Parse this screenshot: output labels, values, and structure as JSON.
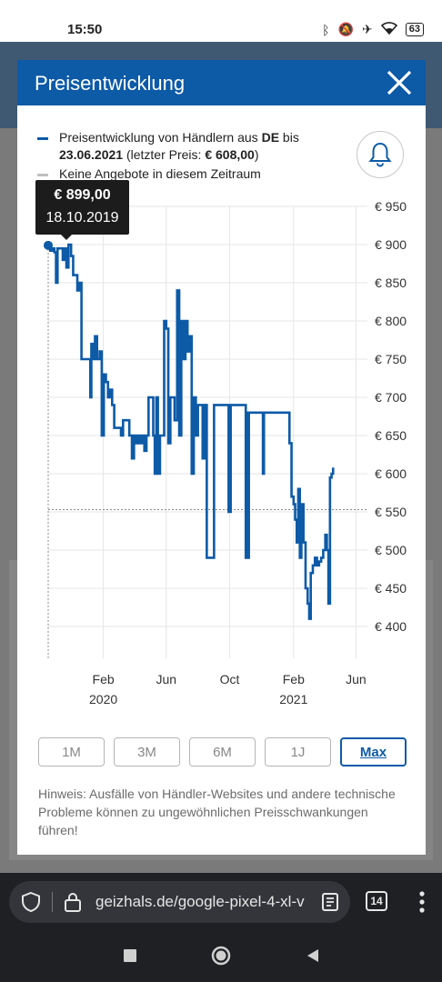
{
  "statusbar": {
    "time": "15:50",
    "battery": "63"
  },
  "modal": {
    "title": "Preisentwicklung"
  },
  "legend": {
    "line1_pre": "Preisentwicklung von Händlern aus ",
    "line1_country": "DE",
    "line1_post": " bis",
    "line2_date": "23.06.2021",
    "line2_mid": " (letzter Preis: ",
    "line2_price": "€ 608,00",
    "line2_end": ")",
    "gray_label": "Keine Angebote in diesem Zeitraum",
    "line_color": "#0d5aa7",
    "gray_color": "#c0c0c0"
  },
  "tooltip": {
    "price": "€ 899,00",
    "date": "18.10.2019"
  },
  "ranges": [
    {
      "label": "1M",
      "active": false
    },
    {
      "label": "3M",
      "active": false
    },
    {
      "label": "6M",
      "active": false
    },
    {
      "label": "1J",
      "active": false
    },
    {
      "label": "Max",
      "active": true
    }
  ],
  "hint": "Hinweis: Ausfälle von Händler-Websites und andere technische Probleme können zu ungewöhnlichen Preisschwankungen führen!",
  "browser": {
    "url": "geizhals.de/google-pixel-4-xl-v",
    "tab_count": "14"
  },
  "chart_data": {
    "type": "line",
    "accent_color": "#0d5aa7",
    "ylim": [
      400,
      950
    ],
    "yticks": [
      {
        "value": 950,
        "label": "€ 950"
      },
      {
        "value": 900,
        "label": "€ 900"
      },
      {
        "value": 850,
        "label": "€ 850"
      },
      {
        "value": 800,
        "label": "€ 800"
      },
      {
        "value": 750,
        "label": "€ 750"
      },
      {
        "value": 700,
        "label": "€ 700"
      },
      {
        "value": 650,
        "label": "€ 650"
      },
      {
        "value": 600,
        "label": "€ 600"
      },
      {
        "value": 550,
        "label": "€ 550"
      },
      {
        "value": 500,
        "label": "€ 500"
      },
      {
        "value": 450,
        "label": "€ 450"
      },
      {
        "value": 400,
        "label": "€ 400"
      }
    ],
    "xlim": [
      "2019-10-18",
      "2021-06-23"
    ],
    "xticks": [
      {
        "date": "2020-02-01",
        "label": "Feb",
        "year": "2020"
      },
      {
        "date": "2020-06-01",
        "label": "Jun",
        "year": ""
      },
      {
        "date": "2020-10-01",
        "label": "Oct",
        "year": ""
      },
      {
        "date": "2021-02-01",
        "label": "Feb",
        "year": "2021"
      },
      {
        "date": "2021-06-01",
        "label": "Jun",
        "year": ""
      }
    ],
    "reference_line": {
      "value": 553,
      "style": "dashed"
    },
    "series": [
      {
        "points": [
          [
            "2019-10-18",
            899
          ],
          [
            "2019-10-22",
            892
          ],
          [
            "2019-10-26",
            895
          ],
          [
            "2019-10-30",
            890
          ],
          [
            "2019-11-02",
            850
          ],
          [
            "2019-11-05",
            895
          ],
          [
            "2019-11-12",
            895
          ],
          [
            "2019-11-15",
            880
          ],
          [
            "2019-11-19",
            895
          ],
          [
            "2019-11-22",
            870
          ],
          [
            "2019-11-26",
            900
          ],
          [
            "2019-12-01",
            885
          ],
          [
            "2019-12-05",
            860
          ],
          [
            "2019-12-10",
            860
          ],
          [
            "2019-12-13",
            840
          ],
          [
            "2019-12-17",
            850
          ],
          [
            "2019-12-21",
            750
          ],
          [
            "2020-01-05",
            750
          ],
          [
            "2020-01-07",
            700
          ],
          [
            "2020-01-09",
            770
          ],
          [
            "2020-01-12",
            750
          ],
          [
            "2020-01-16",
            780
          ],
          [
            "2020-01-20",
            750
          ],
          [
            "2020-01-25",
            760
          ],
          [
            "2020-01-29",
            650
          ],
          [
            "2020-02-02",
            730
          ],
          [
            "2020-02-06",
            720
          ],
          [
            "2020-02-10",
            700
          ],
          [
            "2020-02-14",
            710
          ],
          [
            "2020-02-18",
            690
          ],
          [
            "2020-02-22",
            660
          ],
          [
            "2020-02-27",
            660
          ],
          [
            "2020-03-02",
            660
          ],
          [
            "2020-03-06",
            650
          ],
          [
            "2020-03-10",
            670
          ],
          [
            "2020-03-18",
            670
          ],
          [
            "2020-03-22",
            650
          ],
          [
            "2020-03-27",
            620
          ],
          [
            "2020-03-31",
            650
          ],
          [
            "2020-04-04",
            640
          ],
          [
            "2020-04-08",
            650
          ],
          [
            "2020-04-12",
            640
          ],
          [
            "2020-04-16",
            650
          ],
          [
            "2020-04-20",
            630
          ],
          [
            "2020-04-24",
            650
          ],
          [
            "2020-04-28",
            700
          ],
          [
            "2020-05-03",
            700
          ],
          [
            "2020-05-07",
            650
          ],
          [
            "2020-05-10",
            600
          ],
          [
            "2020-05-13",
            700
          ],
          [
            "2020-05-16",
            600
          ],
          [
            "2020-05-20",
            650
          ],
          [
            "2020-05-24",
            650
          ],
          [
            "2020-05-28",
            800
          ],
          [
            "2020-06-01",
            790
          ],
          [
            "2020-06-05",
            640
          ],
          [
            "2020-06-09",
            700
          ],
          [
            "2020-06-13",
            700
          ],
          [
            "2020-06-17",
            670
          ],
          [
            "2020-06-22",
            840
          ],
          [
            "2020-06-26",
            650
          ],
          [
            "2020-06-30",
            800
          ],
          [
            "2020-07-04",
            750
          ],
          [
            "2020-07-08",
            800
          ],
          [
            "2020-07-12",
            760
          ],
          [
            "2020-07-16",
            780
          ],
          [
            "2020-07-20",
            600
          ],
          [
            "2020-07-24",
            700
          ],
          [
            "2020-07-28",
            650
          ],
          [
            "2020-08-01",
            690
          ],
          [
            "2020-08-06",
            690
          ],
          [
            "2020-08-10",
            620
          ],
          [
            "2020-08-14",
            690
          ],
          [
            "2020-08-18",
            490
          ],
          [
            "2020-08-28",
            490
          ],
          [
            "2020-09-01",
            690
          ],
          [
            "2020-09-25",
            690
          ],
          [
            "2020-09-29",
            550
          ],
          [
            "2020-10-03",
            690
          ],
          [
            "2020-10-28",
            690
          ],
          [
            "2020-11-01",
            490
          ],
          [
            "2020-11-03",
            680
          ],
          [
            "2020-11-05",
            490
          ],
          [
            "2020-11-07",
            680
          ],
          [
            "2020-12-01",
            680
          ],
          [
            "2020-12-04",
            600
          ],
          [
            "2020-12-06",
            680
          ],
          [
            "2021-01-20",
            680
          ],
          [
            "2021-01-24",
            640
          ],
          [
            "2021-01-28",
            570
          ],
          [
            "2021-02-01",
            560
          ],
          [
            "2021-02-04",
            540
          ],
          [
            "2021-02-07",
            510
          ],
          [
            "2021-02-10",
            580
          ],
          [
            "2021-02-13",
            490
          ],
          [
            "2021-02-16",
            560
          ],
          [
            "2021-02-20",
            510
          ],
          [
            "2021-02-24",
            450
          ],
          [
            "2021-02-28",
            430
          ],
          [
            "2021-03-03",
            410
          ],
          [
            "2021-03-06",
            470
          ],
          [
            "2021-03-10",
            480
          ],
          [
            "2021-03-14",
            490
          ],
          [
            "2021-03-18",
            480
          ],
          [
            "2021-03-22",
            485
          ],
          [
            "2021-03-26",
            490
          ],
          [
            "2021-03-30",
            500
          ],
          [
            "2021-04-03",
            520
          ],
          [
            "2021-04-06",
            500
          ],
          [
            "2021-04-09",
            430
          ],
          [
            "2021-04-12",
            595
          ],
          [
            "2021-04-15",
            600
          ],
          [
            "2021-04-18",
            608
          ]
        ]
      }
    ]
  }
}
